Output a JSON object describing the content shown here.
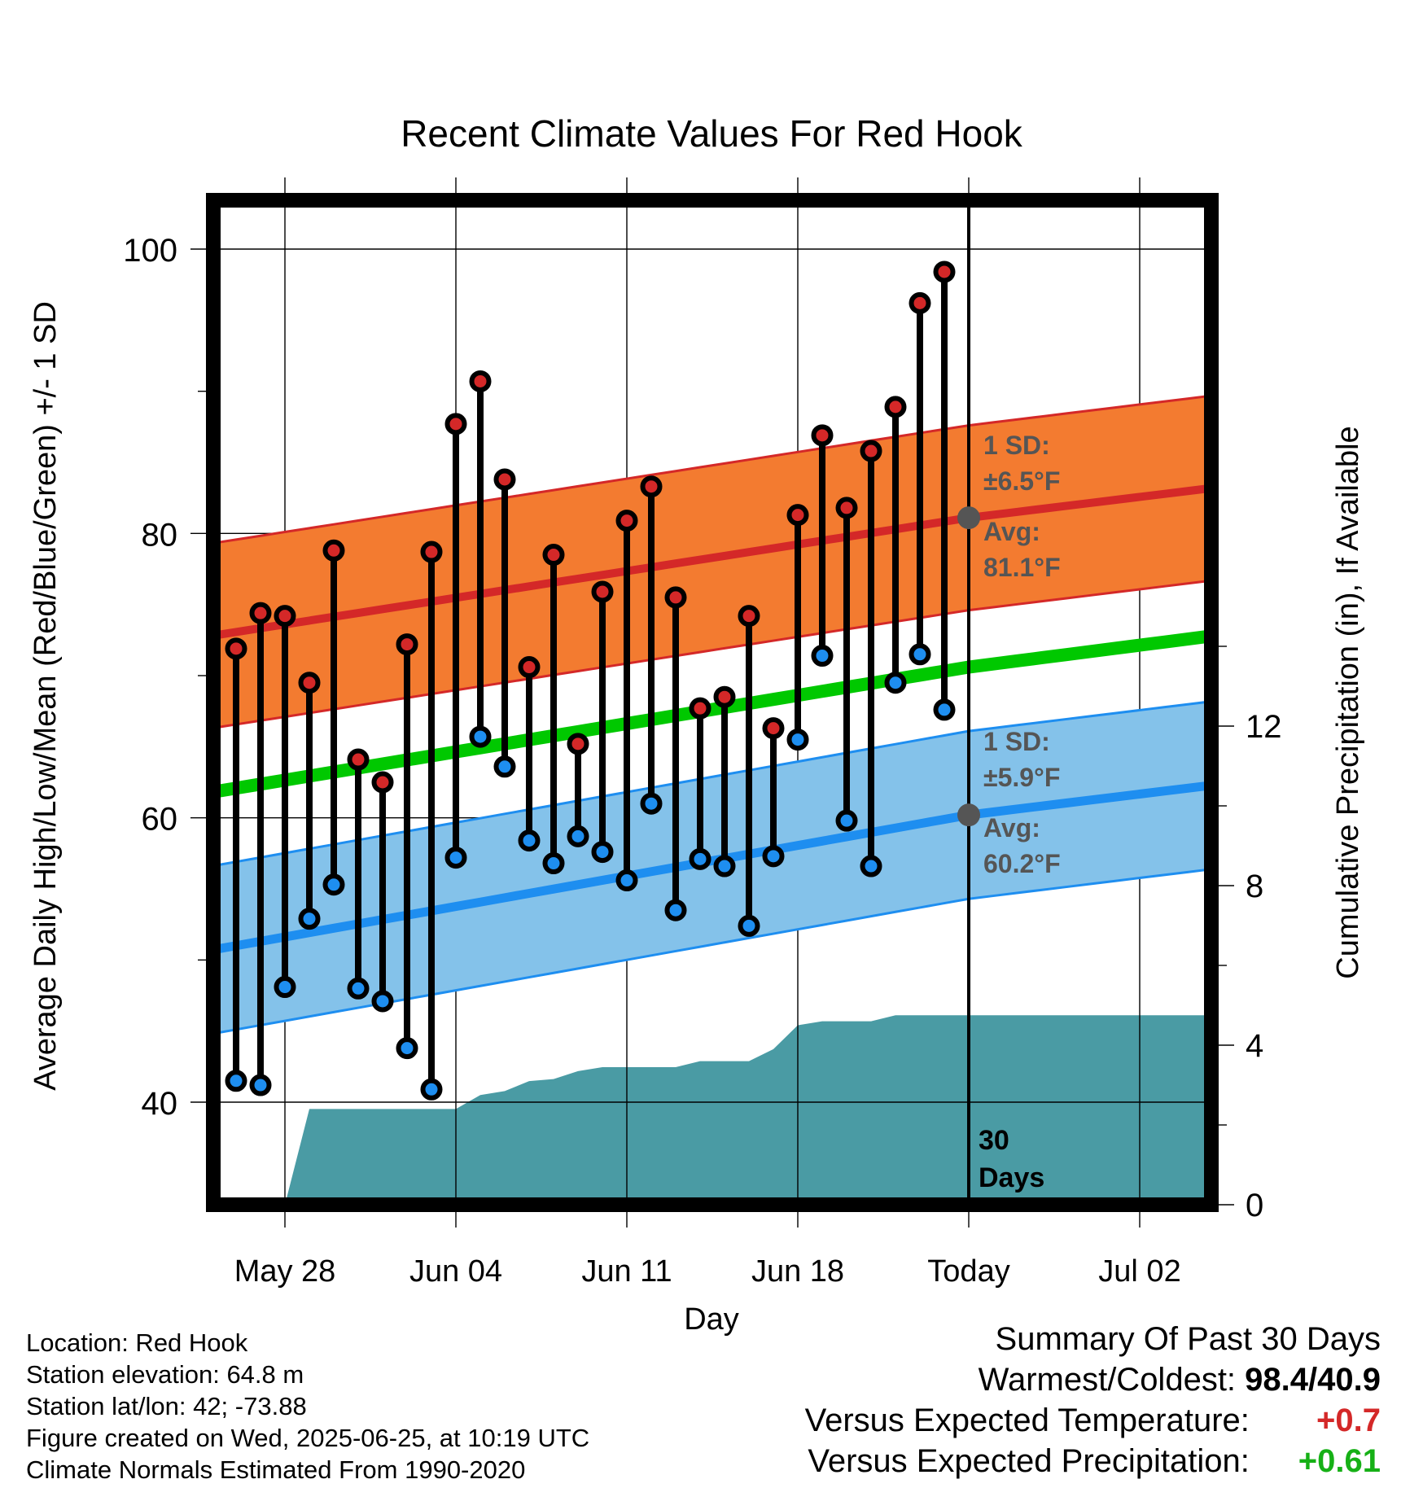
{
  "chart_data": {
    "type": "line",
    "title": "Recent Climate Values For Red Hook",
    "xlabel": "Day",
    "ylabel": "Average Daily High/Low/Mean (Red/Blue/Green) +/- 1 SD",
    "y2label": "Cumulative Precipitation (in), If Available",
    "x_tick_labels": [
      "May 28",
      "Jun 04",
      "Jun 11",
      "Jun 18",
      "Today",
      "Jul 02"
    ],
    "x_range": [
      "2025-05-25",
      "2025-07-05"
    ],
    "ylim": [
      36,
      105
    ],
    "yticks": [
      "40",
      "60",
      "80",
      "100"
    ],
    "y2lim": [
      0,
      19
    ],
    "y2ticks": [
      "0",
      "4",
      "8",
      "12"
    ],
    "dates": [
      "2025-05-26",
      "2025-05-27",
      "2025-05-28",
      "2025-05-29",
      "2025-05-30",
      "2025-05-31",
      "2025-06-01",
      "2025-06-02",
      "2025-06-03",
      "2025-06-04",
      "2025-06-05",
      "2025-06-06",
      "2025-06-07",
      "2025-06-08",
      "2025-06-09",
      "2025-06-10",
      "2025-06-11",
      "2025-06-12",
      "2025-06-13",
      "2025-06-14",
      "2025-06-15",
      "2025-06-16",
      "2025-06-17",
      "2025-06-18",
      "2025-06-19",
      "2025-06-20",
      "2025-06-21",
      "2025-06-22",
      "2025-06-23",
      "2025-06-24"
    ],
    "series": [
      {
        "key": "high",
        "color": "#d42828",
        "values": [
          71.9,
          74.4,
          74.2,
          69.5,
          78.8,
          64.1,
          62.5,
          72.2,
          78.7,
          87.7,
          90.7,
          83.8,
          70.6,
          78.5,
          65.2,
          75.9,
          80.9,
          83.3,
          75.5,
          67.7,
          68.5,
          74.2,
          66.3,
          81.3,
          86.9,
          81.8,
          85.8,
          88.9,
          96.2,
          98.4
        ]
      },
      {
        "key": "low",
        "color": "#1e8ef0",
        "values": [
          41.5,
          41.2,
          48.1,
          52.9,
          55.3,
          48.0,
          47.1,
          43.8,
          40.9,
          57.2,
          65.7,
          63.6,
          58.4,
          56.8,
          58.7,
          57.6,
          55.6,
          61.0,
          53.5,
          57.1,
          56.6,
          52.4,
          57.3,
          65.5,
          71.4,
          59.8,
          56.6,
          69.5,
          71.5,
          67.6
        ]
      }
    ],
    "normals": {
      "dates": [
        "2025-05-25",
        "2025-06-25",
        "2025-07-05"
      ],
      "avg_high": [
        72.8,
        81.1,
        83.2
      ],
      "high_sd": 6.5,
      "avg_low": [
        50.7,
        60.2,
        62.3
      ],
      "low_sd": 5.9,
      "avg_mean": [
        61.8,
        70.6,
        72.8
      ],
      "band_high_color": "#f37b30",
      "band_low_color": "#84c2ea",
      "mean_color": "#00c800"
    },
    "precip": {
      "color": "#4a9ba4",
      "dates": [
        "2025-05-28",
        "2025-05-29",
        "2025-05-31",
        "2025-06-01",
        "2025-06-02",
        "2025-06-03",
        "2025-06-04",
        "2025-06-05",
        "2025-06-06",
        "2025-06-07",
        "2025-06-08",
        "2025-06-09",
        "2025-06-10",
        "2025-06-11",
        "2025-06-12",
        "2025-06-13",
        "2025-06-14",
        "2025-06-15",
        "2025-06-16",
        "2025-06-17",
        "2025-06-18",
        "2025-06-19",
        "2025-06-20",
        "2025-06-21",
        "2025-06-22",
        "2025-06-23",
        "2025-06-24",
        "2025-06-25",
        "2025-07-05"
      ],
      "values": [
        0,
        2.4,
        2.4,
        2.4,
        2.4,
        2.4,
        2.4,
        2.75,
        2.85,
        3.1,
        3.15,
        3.35,
        3.45,
        3.45,
        3.45,
        3.45,
        3.6,
        3.6,
        3.6,
        3.9,
        4.5,
        4.6,
        4.6,
        4.6,
        4.75,
        4.75,
        4.75,
        4.75,
        4.75
      ]
    },
    "annotations": [
      {
        "key": "high_sd",
        "text": "1 SD:",
        "text2": "±6.5°F"
      },
      {
        "key": "high_avg",
        "text": "Avg:",
        "text2": "81.1°F"
      },
      {
        "key": "low_sd",
        "text": "1 SD:",
        "text2": "±5.9°F"
      },
      {
        "key": "low_avg",
        "text": "Avg:",
        "text2": "60.2°F"
      },
      {
        "key": "days",
        "text": "30",
        "text2": "Days"
      }
    ],
    "today": "2025-06-25",
    "grid": true
  },
  "info": {
    "location": "Location: Red Hook",
    "elevation": "Station elevation: 64.8 m",
    "latlon": "Station lat/lon: 42; -73.88",
    "created": "Figure created on Wed, 2025-06-25, at 10:19 UTC",
    "normals": "Climate Normals Estimated From 1990-2020"
  },
  "summary": {
    "title": "Summary Of Past 30 Days",
    "warm_cold_label": "Warmest/Coldest:",
    "warm_cold_value": "98.4/40.9",
    "temp_label": "Versus Expected Temperature:",
    "temp_value": "+0.7",
    "temp_color": "#d42828",
    "precip_label": "Versus Expected Precipitation:",
    "precip_value": "+0.61",
    "precip_color": "#16b016"
  }
}
